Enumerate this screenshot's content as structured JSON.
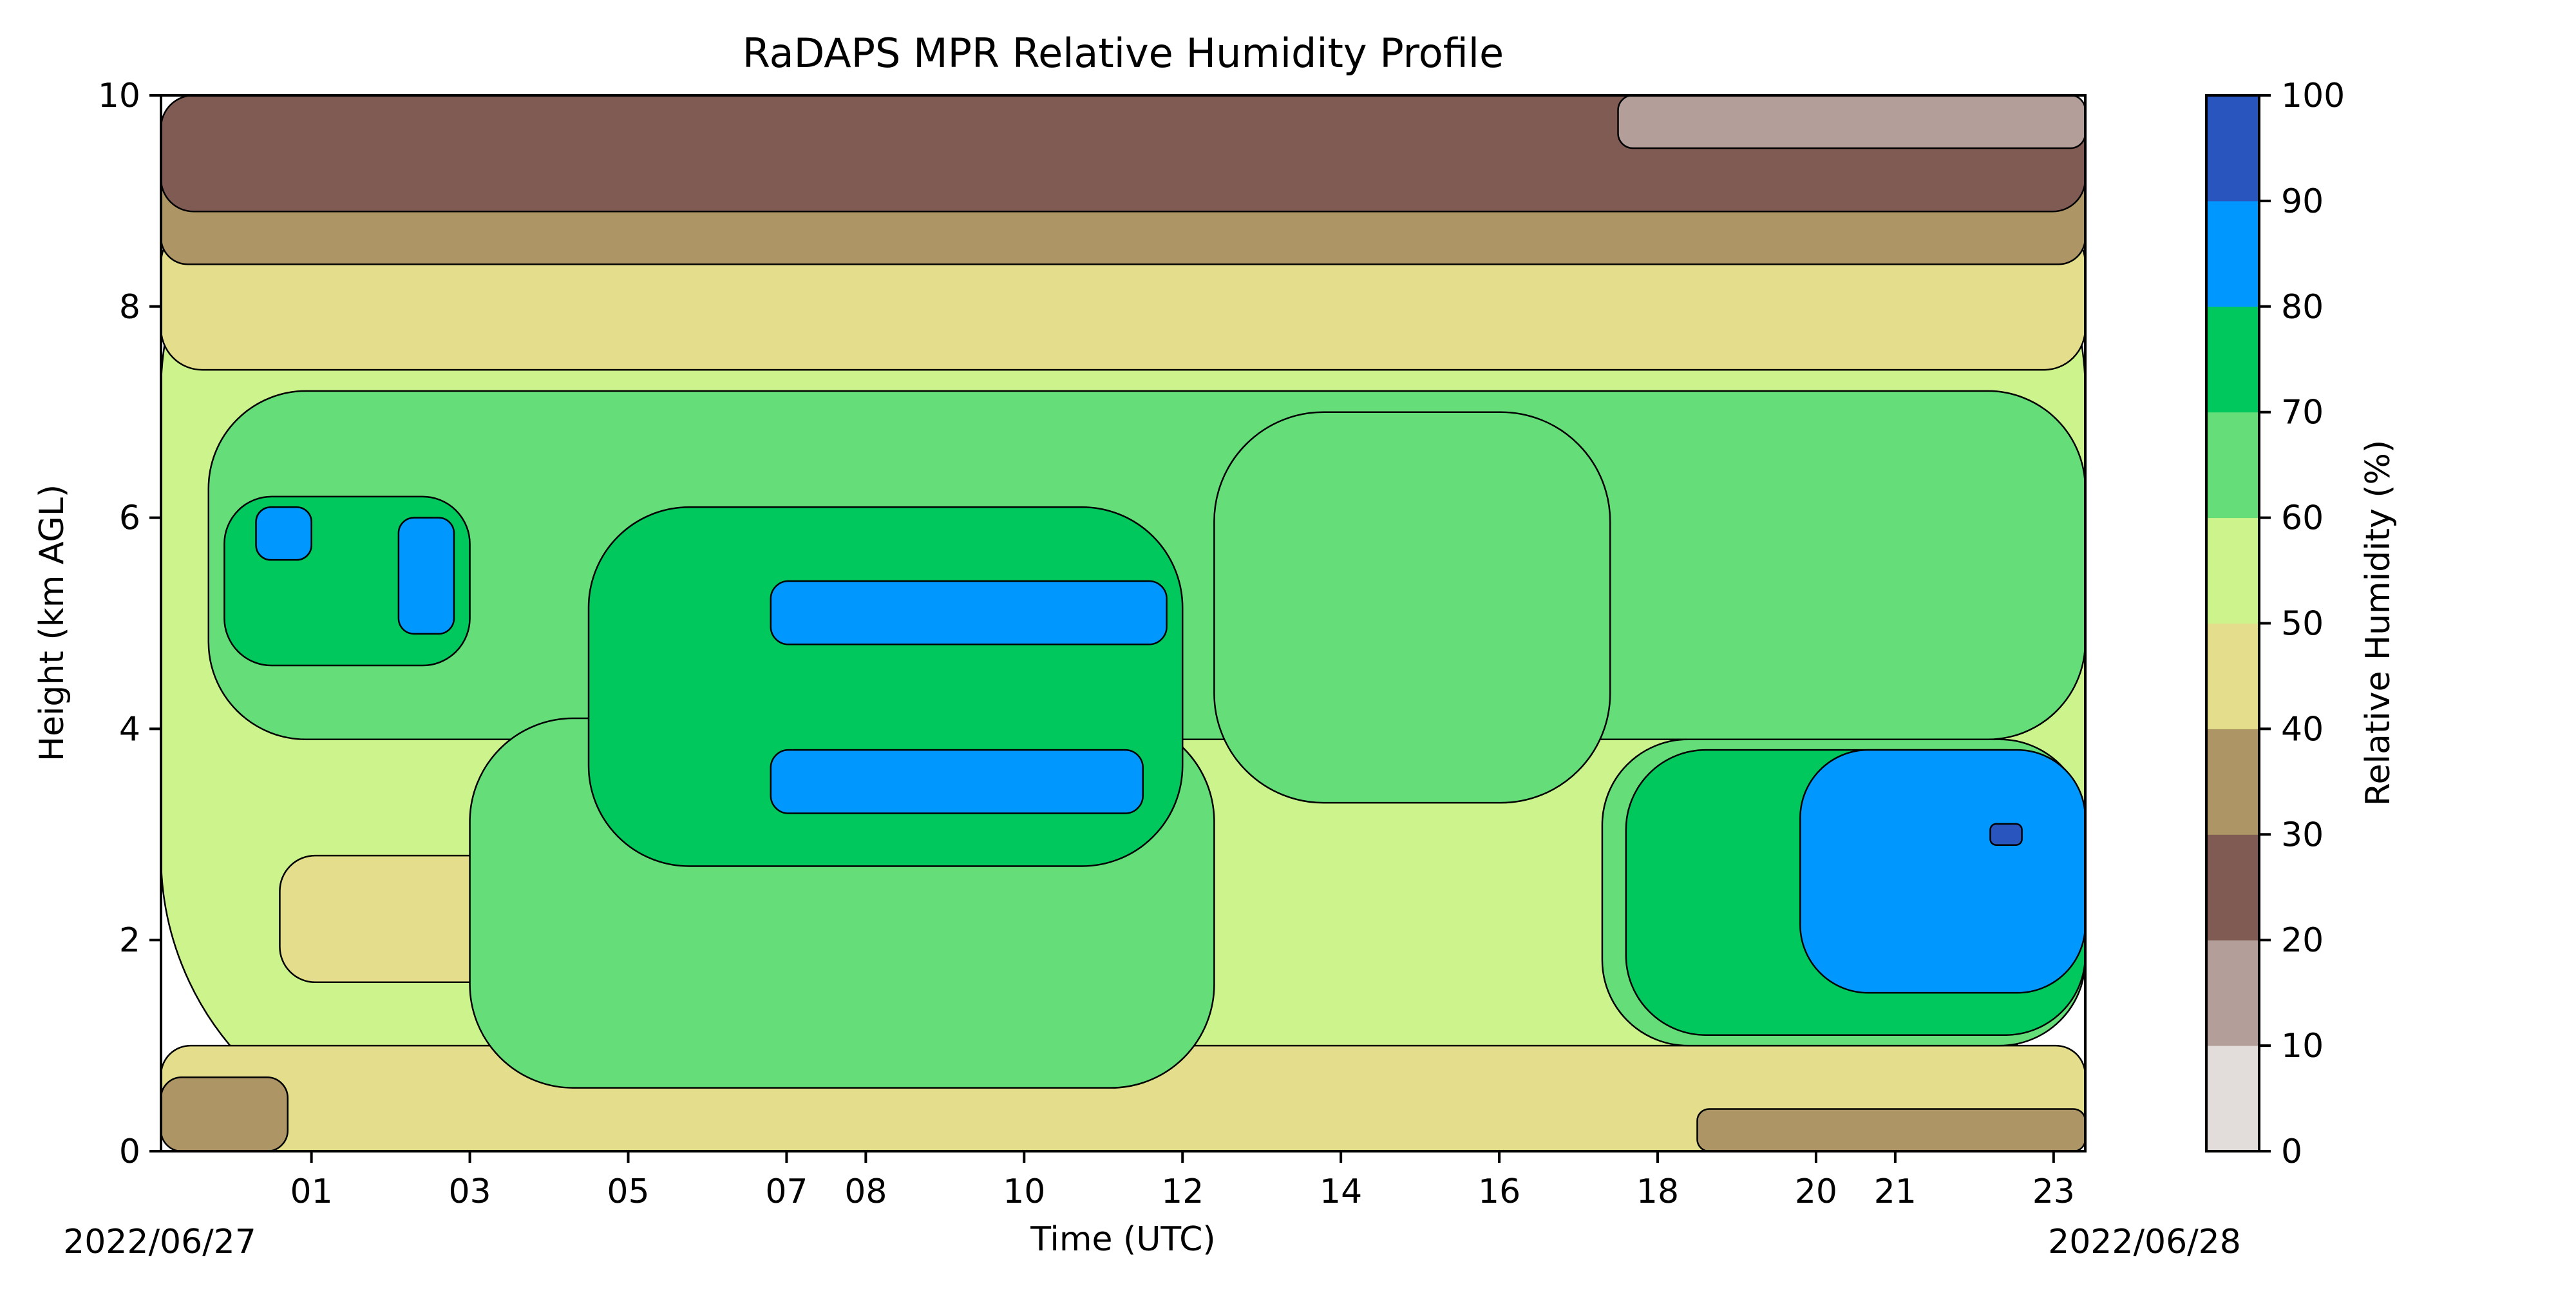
{
  "chart_data": {
    "type": "heatmap",
    "subtype": "filled-contour",
    "title": "RaDAPS MPR Relative Humidity Profile",
    "xlabel": "Time (UTC)",
    "ylabel": "Height (km AGL)",
    "x_ticks": [
      "01",
      "03",
      "05",
      "07",
      "08",
      "10",
      "12",
      "14",
      "16",
      "18",
      "20",
      "21",
      "23"
    ],
    "x_tick_hours": [
      1,
      3,
      5,
      7,
      8,
      10,
      12,
      14,
      16,
      18,
      20,
      21,
      23
    ],
    "xlim_hours": [
      -0.9,
      23.4
    ],
    "start_date_label": "2022/06/27",
    "end_date_label": "2022/06/28",
    "y_ticks": [
      0,
      2,
      4,
      6,
      8,
      10
    ],
    "ylim": [
      0,
      10
    ],
    "colorbar": {
      "label": "Relative Humidity (%)",
      "ticks": [
        0,
        10,
        20,
        30,
        40,
        50,
        60,
        70,
        80,
        90,
        100
      ],
      "levels": [
        0,
        10,
        20,
        30,
        40,
        50,
        60,
        70,
        80,
        90,
        100
      ],
      "colors": [
        "#e2dcda",
        "#b39e99",
        "#7f5b54",
        "#ad9566",
        "#e4dd8b",
        "#cdf38d",
        "#65de7a",
        "#00c85c",
        "#0097ff",
        "#2955bf"
      ]
    },
    "regions": [
      {
        "x": [
          -0.9,
          23.4
        ],
        "y": [
          0,
          10
        ],
        "level": 50
      },
      {
        "x": [
          -0.9,
          23.4
        ],
        "y": [
          7.4,
          8.8
        ],
        "level": 40
      },
      {
        "x": [
          -0.9,
          23.4
        ],
        "y": [
          8.4,
          9.3
        ],
        "level": 30
      },
      {
        "x": [
          -0.9,
          23.4
        ],
        "y": [
          8.9,
          10
        ],
        "level": 20
      },
      {
        "x": [
          17.5,
          23.4
        ],
        "y": [
          9.5,
          10
        ],
        "level": 10
      },
      {
        "x": [
          -0.9,
          23.4
        ],
        "y": [
          0,
          1.0
        ],
        "level": 40
      },
      {
        "x": [
          -0.9,
          0.7
        ],
        "y": [
          0,
          0.7
        ],
        "level": 30
      },
      {
        "x": [
          18.5,
          23.4
        ],
        "y": [
          0,
          0.4
        ],
        "level": 30
      },
      {
        "x": [
          0.6,
          3.5
        ],
        "y": [
          1.6,
          2.8
        ],
        "level": 40
      },
      {
        "x": [
          -0.3,
          23.4
        ],
        "y": [
          3.9,
          7.2
        ],
        "level": 60
      },
      {
        "x": [
          3.0,
          12.4
        ],
        "y": [
          0.6,
          4.1
        ],
        "level": 60
      },
      {
        "x": [
          12.4,
          17.4
        ],
        "y": [
          3.3,
          7.0
        ],
        "level": 60
      },
      {
        "x": [
          17.3,
          23.4
        ],
        "y": [
          1.0,
          3.9
        ],
        "level": 60
      },
      {
        "x": [
          -0.1,
          3.0
        ],
        "y": [
          4.6,
          6.2
        ],
        "level": 70
      },
      {
        "x": [
          4.5,
          12.0
        ],
        "y": [
          2.7,
          6.1
        ],
        "level": 70
      },
      {
        "x": [
          17.6,
          23.4
        ],
        "y": [
          1.1,
          3.8
        ],
        "level": 70
      },
      {
        "x": [
          0.3,
          1.0
        ],
        "y": [
          5.6,
          6.1
        ],
        "level": 80
      },
      {
        "x": [
          2.1,
          2.8
        ],
        "y": [
          4.9,
          6.0
        ],
        "level": 80
      },
      {
        "x": [
          6.8,
          11.8
        ],
        "y": [
          4.8,
          5.4
        ],
        "level": 80
      },
      {
        "x": [
          6.8,
          11.5
        ],
        "y": [
          3.2,
          3.8
        ],
        "level": 80
      },
      {
        "x": [
          19.8,
          23.4
        ],
        "y": [
          1.5,
          3.8
        ],
        "level": 80
      },
      {
        "x": [
          22.2,
          22.6
        ],
        "y": [
          2.9,
          3.1
        ],
        "level": 90
      }
    ]
  }
}
